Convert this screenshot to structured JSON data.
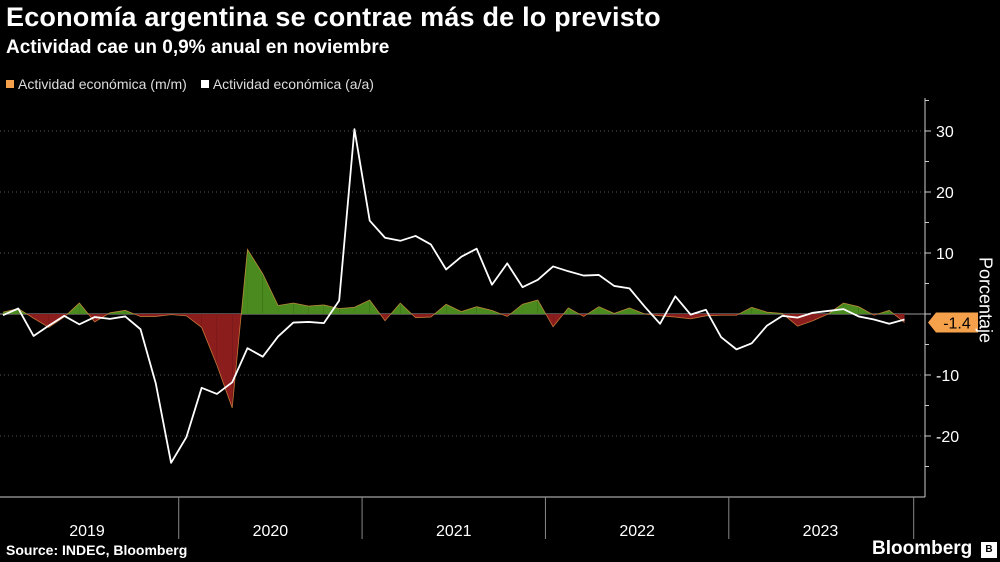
{
  "chart_data": {
    "type": "area+line",
    "title": "Economía argentina se contrae más de lo previsto",
    "subtitle": "Actividad cae un 0,9% anual en noviembre",
    "ylabel": "Porcentaje",
    "ylim": [
      -30,
      36
    ],
    "yticks": [
      30,
      20,
      10,
      0,
      -10,
      -20
    ],
    "ytick_labels": [
      "30",
      "20",
      "10",
      "",
      "-10",
      "-20"
    ],
    "x_start": "2019-01",
    "x_end": "2023-11",
    "year_labels": [
      "2019",
      "2020",
      "2021",
      "2022",
      "2023"
    ],
    "last_value_label": "-1.4",
    "series": [
      {
        "name": "Actividad económica (m/m)",
        "color": "#f5a04a",
        "pos_color": "#4a8a1e",
        "neg_color": "#8b1d1d",
        "values": [
          0.3,
          0.9,
          -0.7,
          -2.2,
          -0.5,
          1.8,
          -1.3,
          0.2,
          0.6,
          -0.4,
          -0.4,
          -0.1,
          -0.3,
          -2.2,
          -8.4,
          -15.4,
          10.6,
          6.6,
          1.4,
          1.8,
          1.3,
          1.5,
          0.9,
          1.1,
          2.3,
          -1.1,
          1.8,
          -0.6,
          -0.5,
          1.6,
          0.4,
          1.2,
          0.6,
          -0.4,
          1.6,
          2.3,
          -2.1,
          1.0,
          -0.4,
          1.2,
          0.1,
          1.0,
          0.0,
          -0.3,
          -0.5,
          -0.8,
          -0.3,
          -0.2,
          -0.2,
          1.1,
          0.3,
          0.1,
          -2.0,
          -1.1,
          0.0,
          1.8,
          1.2,
          -0.2,
          0.6,
          -1.4
        ]
      },
      {
        "name": "Actividad económica (a/a)",
        "color": "#ffffff",
        "values": [
          -0.2,
          0.9,
          -3.6,
          -1.9,
          -0.3,
          -1.7,
          -0.5,
          -0.8,
          -0.4,
          -2.5,
          -11.4,
          -24.4,
          -20.2,
          -12.1,
          -13.1,
          -11.2,
          -5.6,
          -7.0,
          -3.7,
          -1.4,
          -1.3,
          -1.5,
          2.2,
          30.3,
          15.3,
          12.5,
          12.0,
          12.8,
          11.4,
          7.3,
          9.4,
          10.7,
          4.8,
          8.3,
          4.4,
          5.6,
          7.8,
          7.0,
          6.3,
          6.4,
          4.6,
          4.2,
          1.2,
          -1.6,
          2.9,
          -0.1,
          0.7,
          -3.8,
          -5.8,
          -4.8,
          -1.9,
          -0.3,
          -0.6,
          0.2,
          0.5,
          0.8,
          -0.4,
          -0.9,
          -1.6,
          -0.9
        ]
      }
    ]
  },
  "footer": {
    "source": "Source: INDEC, Bloomberg",
    "brand": "Bloomberg",
    "badge": "B"
  }
}
